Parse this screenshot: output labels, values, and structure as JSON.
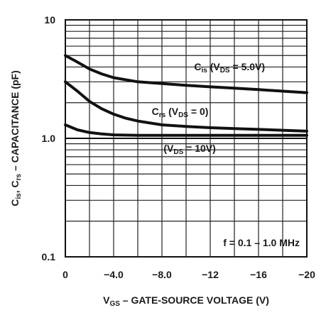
{
  "chart_data": {
    "type": "line",
    "xlabel": "VGS – GATE-SOURCE VOLTAGE (V)",
    "xlabel_parts": {
      "main": "V",
      "sub": "GS",
      "rest": " – GATE-SOURCE VOLTAGE (V)"
    },
    "ylabel": "Cis, Crs – CAPACITANCE (pF)",
    "ylabel_parts": {
      "c1": "C",
      "s1": "is",
      "mid": ", C",
      "s2": "rs",
      "rest": " – CAPACITANCE (pF)"
    },
    "x_ticks": [
      "0",
      "−4.0",
      "−8.0",
      "−12",
      "−16",
      "−20"
    ],
    "y_ticks": [
      "10",
      "1.0",
      "0.1"
    ],
    "xlim": [
      0,
      -20
    ],
    "ylim": [
      0.1,
      10
    ],
    "y_scale": "log",
    "grid": true,
    "series": [
      {
        "label_parts": {
          "c": "C",
          "s": "is",
          "rest": " (V",
          "s2": "DS",
          "tail": " = 5.0V)"
        },
        "x": [
          0,
          -1,
          -2,
          -3,
          -4,
          -6,
          -8,
          -10,
          -12,
          -14,
          -16,
          -18,
          -20
        ],
        "values": [
          5.0,
          4.4,
          3.85,
          3.5,
          3.25,
          3.0,
          2.9,
          2.8,
          2.72,
          2.65,
          2.58,
          2.5,
          2.43
        ]
      },
      {
        "label_parts": {
          "c": "C",
          "s": "rs",
          "rest": " (V",
          "s2": "DS",
          "tail": " = 0)"
        },
        "x": [
          0,
          -1,
          -2,
          -3,
          -4,
          -5,
          -6,
          -8,
          -10,
          -12,
          -14,
          -16,
          -18,
          -20
        ],
        "values": [
          3.0,
          2.5,
          2.05,
          1.78,
          1.6,
          1.48,
          1.4,
          1.3,
          1.26,
          1.23,
          1.21,
          1.19,
          1.17,
          1.15
        ]
      },
      {
        "label_parts": {
          "c": "",
          "s": "",
          "rest": "(V",
          "s2": "DS",
          "tail": " = 10V)"
        },
        "x": [
          0,
          -1,
          -2,
          -3,
          -4,
          -6,
          -8,
          -12,
          -16,
          -20
        ],
        "values": [
          1.3,
          1.18,
          1.12,
          1.09,
          1.07,
          1.06,
          1.06,
          1.06,
          1.06,
          1.06
        ]
      }
    ],
    "annotation": "f = 0.1 – 1.0 MHz"
  }
}
